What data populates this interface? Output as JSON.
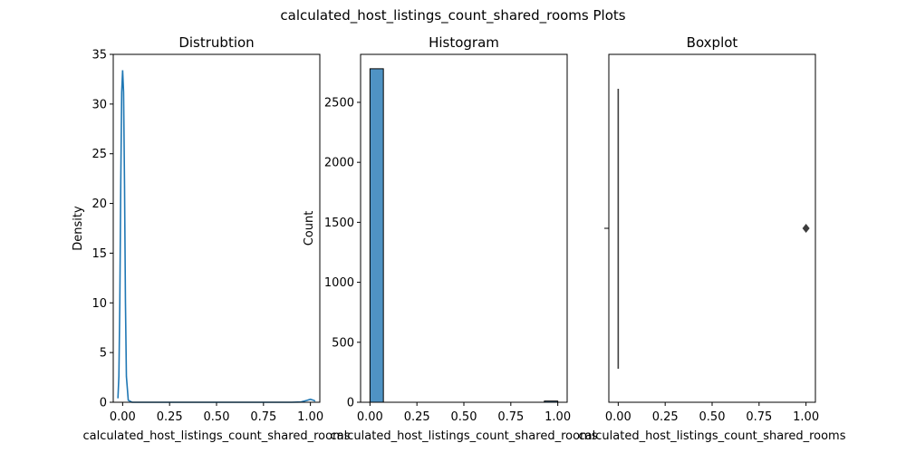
{
  "figure": {
    "suptitle": "calculated_host_listings_count_shared_rooms Plots"
  },
  "chart_data": [
    {
      "type": "line",
      "title": "Distrubtion",
      "xlabel": "calculated_host_listings_count_shared_rooms",
      "ylabel": "Density",
      "xlim": [
        -0.05,
        1.05
      ],
      "ylim": [
        0,
        35
      ],
      "xticks": [
        "0.00",
        "0.25",
        "0.50",
        "0.75",
        "1.00"
      ],
      "yticks": [
        "0",
        "5",
        "10",
        "15",
        "20",
        "25",
        "30",
        "35"
      ],
      "series": [
        {
          "color": "#1f77b4",
          "x": [
            -0.025,
            -0.02,
            -0.015,
            -0.01,
            -0.005,
            0.0,
            0.005,
            0.01,
            0.015,
            0.02,
            0.03,
            0.05,
            0.1,
            0.3,
            0.5,
            0.7,
            0.9,
            0.95,
            0.98,
            1.0,
            1.02,
            1.025
          ],
          "y": [
            0.4,
            2.6,
            10.0,
            22.0,
            31.2,
            33.4,
            31.2,
            22.0,
            10.0,
            2.6,
            0.2,
            0.0,
            0.0,
            0.0,
            0.0,
            0.0,
            0.0,
            0.03,
            0.18,
            0.3,
            0.18,
            0.1
          ]
        }
      ]
    },
    {
      "type": "bar",
      "title": "Histogram",
      "xlabel": "calculated_host_listings_count_shared_rooms",
      "ylabel": "Count",
      "xlim": [
        -0.05,
        1.05
      ],
      "ylim": [
        0,
        2900
      ],
      "xticks": [
        "0.00",
        "0.25",
        "0.50",
        "0.75",
        "1.00"
      ],
      "yticks": [
        "0",
        "500",
        "1000",
        "1500",
        "2000",
        "2500"
      ],
      "bar_color": "#4f93c4",
      "bars": [
        {
          "x0": 0.0,
          "x1": 0.0714,
          "count": 2780
        },
        {
          "x0": 0.9286,
          "x1": 1.0,
          "count": 10
        }
      ]
    },
    {
      "type": "box",
      "title": "Boxplot",
      "xlabel": "calculated_host_listings_count_shared_rooms",
      "ylabel": "",
      "xlim": [
        -0.05,
        1.05
      ],
      "xticks": [
        "0.00",
        "0.25",
        "0.50",
        "0.75",
        "1.00"
      ],
      "box": {
        "q1": 0,
        "median": 0,
        "q3": 0,
        "whisker_low": 0,
        "whisker_high": 0
      },
      "outliers": [
        1.0
      ],
      "box_color": "#3d3d3d"
    }
  ]
}
